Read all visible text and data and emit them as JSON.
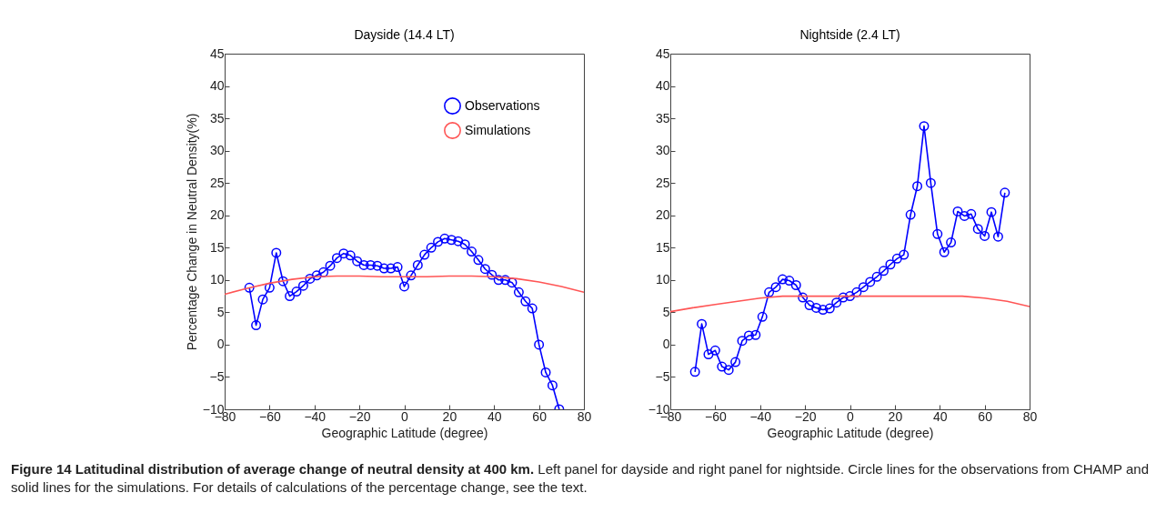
{
  "chart_data": [
    {
      "type": "line",
      "title": "Dayside (14.4 LT)",
      "xlabel": "Geographic Latitude (degree)",
      "ylabel": "Percentage Change in Neutral Density(%)",
      "xlim": [
        -80,
        80
      ],
      "xticks": [
        -80,
        -60,
        -40,
        -20,
        0,
        20,
        40,
        60,
        80
      ],
      "ylim": [
        -10,
        45
      ],
      "yticks": [
        -10,
        -5,
        0,
        5,
        10,
        15,
        20,
        25,
        30,
        35,
        40,
        45
      ],
      "grid": false,
      "legend": "top right",
      "annotations": [
        "Figure 14 Latitudinal distribution of average change of neutral density at 400 km.",
        "Left panel for dayside and right panel for nightside. Circle lines for the observations from CHAMP and solid lines for the simulations. For details of calculations of the percentage change, see the text."
      ],
      "series": [
        {
          "name": "Observations",
          "color": "#0000ff",
          "marker": "circle",
          "x": [
            -69,
            -66,
            -63,
            -60,
            -57,
            -54,
            -51,
            -48,
            -45,
            -42,
            -39,
            -36,
            -33,
            -30,
            -27,
            -24,
            -21,
            -18,
            -15,
            -12,
            -9,
            -6,
            -3,
            0,
            3,
            6,
            9,
            12,
            15,
            18,
            21,
            24,
            27,
            30,
            33,
            36,
            39,
            42,
            45,
            48,
            51,
            54,
            57,
            60,
            63,
            66,
            69
          ],
          "values": [
            8.8,
            3.0,
            7.0,
            8.8,
            14.2,
            9.8,
            7.5,
            8.2,
            9.1,
            10.2,
            10.7,
            11.2,
            12.2,
            13.4,
            14.1,
            13.8,
            12.9,
            12.3,
            12.3,
            12.2,
            11.8,
            11.8,
            12.0,
            9.0,
            10.7,
            12.3,
            13.9,
            15.0,
            15.9,
            16.4,
            16.2,
            16.0,
            15.5,
            14.4,
            13.1,
            11.7,
            10.8,
            10.0,
            10.0,
            9.6,
            8.1,
            6.7,
            5.6,
            0.0,
            -4.3,
            -6.3,
            -10.0
          ]
        },
        {
          "name": "Simulations",
          "color": "#ff5555",
          "marker": "none",
          "x": [
            -80,
            -70,
            -60,
            -50,
            -40,
            -30,
            -20,
            -10,
            0,
            10,
            20,
            30,
            40,
            50,
            60,
            70,
            80
          ],
          "values": [
            7.8,
            8.7,
            9.5,
            10.1,
            10.5,
            10.6,
            10.6,
            10.5,
            10.5,
            10.5,
            10.6,
            10.6,
            10.5,
            10.2,
            9.7,
            9.0,
            8.1
          ]
        }
      ]
    },
    {
      "type": "line",
      "title": "Nightside (2.4 LT)",
      "xlabel": "Geographic Latitude (degree)",
      "xlim": [
        -80,
        80
      ],
      "xticks": [
        -80,
        -60,
        -40,
        -20,
        0,
        20,
        40,
        60,
        80
      ],
      "ylim": [
        -10,
        45
      ],
      "yticks": [
        -10,
        -5,
        0,
        5,
        10,
        15,
        20,
        25,
        30,
        35,
        40,
        45
      ],
      "grid": false,
      "series": [
        {
          "color": "#0000ff",
          "marker": "circle",
          "x": [
            -69,
            -66,
            -63,
            -60,
            -57,
            -54,
            -51,
            -48,
            -45,
            -42,
            -39,
            -36,
            -33,
            -30,
            -27,
            -24,
            -21,
            -18,
            -15,
            -12,
            -9,
            -6,
            -3,
            0,
            3,
            6,
            9,
            12,
            15,
            18,
            21,
            24,
            27,
            30,
            33,
            36,
            39,
            42,
            45,
            48,
            51,
            54,
            57,
            60,
            63,
            66,
            69
          ],
          "values": [
            -4.2,
            3.2,
            -1.5,
            -0.9,
            -3.4,
            -3.9,
            -2.7,
            0.6,
            1.4,
            1.5,
            4.3,
            8.1,
            8.9,
            10.1,
            9.9,
            9.2,
            7.3,
            6.1,
            5.7,
            5.4,
            5.6,
            6.5,
            7.3,
            7.5,
            8.1,
            8.9,
            9.7,
            10.5,
            11.4,
            12.4,
            13.3,
            13.9,
            20.1,
            24.5,
            33.8,
            25.0,
            17.1,
            14.3,
            15.8,
            20.6,
            19.9,
            20.2,
            17.9,
            16.8,
            20.5,
            16.7,
            23.5
          ]
        },
        {
          "color": "#ff5555",
          "marker": "none",
          "x": [
            -80,
            -70,
            -60,
            -50,
            -40,
            -30,
            -20,
            -10,
            0,
            10,
            20,
            30,
            40,
            50,
            60,
            70,
            80
          ],
          "values": [
            5.1,
            5.7,
            6.2,
            6.7,
            7.2,
            7.5,
            7.5,
            7.5,
            7.5,
            7.5,
            7.5,
            7.5,
            7.5,
            7.5,
            7.2,
            6.7,
            5.9
          ]
        }
      ]
    }
  ]
}
